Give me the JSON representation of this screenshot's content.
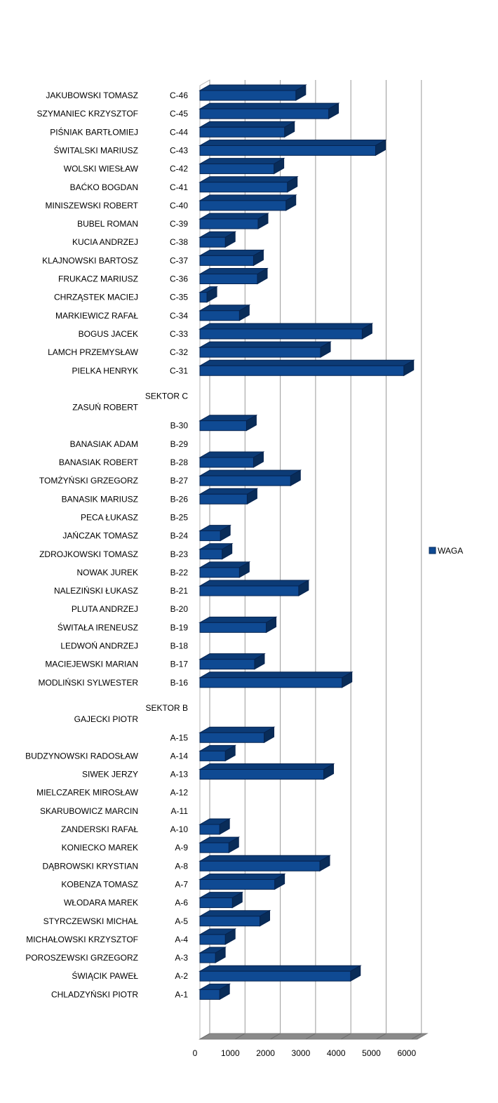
{
  "chart_data": {
    "type": "bar",
    "orientation": "horizontal",
    "style": "3d",
    "title": "",
    "xlabel": "",
    "ylabel": "",
    "xlim": [
      0,
      6000
    ],
    "x_ticks": [
      0,
      1000,
      2000,
      3000,
      4000,
      5000,
      6000
    ],
    "grid": true,
    "legend": "right",
    "series": [
      {
        "name": "WAGA",
        "color": "#0f4a93"
      }
    ],
    "rows": [
      {
        "name": "JAKUBOWSKI TOMASZ",
        "code": "C-46",
        "value": 2720
      },
      {
        "name": "SZYMANIEC KRZYSZTOF",
        "code": "C-45",
        "value": 3650
      },
      {
        "name": "PIŚNIAK BARTŁOMIEJ",
        "code": "C-44",
        "value": 2400
      },
      {
        "name": "ŚWITALSKI MARIUSZ",
        "code": "C-43",
        "value": 4980
      },
      {
        "name": "WOLSKI WIESŁAW",
        "code": "C-42",
        "value": 2100
      },
      {
        "name": "BAĆKO BOGDAN",
        "code": "C-41",
        "value": 2480
      },
      {
        "name": "MINISZEWSKI ROBERT",
        "code": "C-40",
        "value": 2440
      },
      {
        "name": "BUBEL ROMAN",
        "code": "C-39",
        "value": 1650
      },
      {
        "name": "KUCIA ANDRZEJ",
        "code": "C-38",
        "value": 720
      },
      {
        "name": "KLAJNOWSKI BARTOSZ",
        "code": "C-37",
        "value": 1520
      },
      {
        "name": "FRUKACZ MARIUSZ",
        "code": "C-36",
        "value": 1630
      },
      {
        "name": "CHRZĄSTEK MACIEJ",
        "code": "C-35",
        "value": 200
      },
      {
        "name": "MARKIEWICZ RAFAŁ",
        "code": "C-34",
        "value": 1120
      },
      {
        "name": "BOGUS JACEK",
        "code": "C-33",
        "value": 4600
      },
      {
        "name": "LAMCH PRZEMYSŁAW",
        "code": "C-32",
        "value": 3420
      },
      {
        "name": "PIELKA HENRYK",
        "code": "C-31",
        "value": 5780
      },
      {
        "name": "",
        "code": "",
        "value": null
      },
      {
        "name": "ZASUŃ ROBERT",
        "code": "SEKTOR C",
        "value": null
      },
      {
        "name": "",
        "code": "B-30",
        "value": 1320
      },
      {
        "name": "BANASIAK ADAM",
        "code": "B-29",
        "value": null
      },
      {
        "name": "BANASIAK ROBERT",
        "code": "B-28",
        "value": 1520
      },
      {
        "name": "TOMŻYŃSKI GRZEGORZ",
        "code": "B-27",
        "value": 2570
      },
      {
        "name": "BANASIK MARIUSZ",
        "code": "B-26",
        "value": 1340
      },
      {
        "name": "PECA ŁUKASZ",
        "code": "B-25",
        "value": null
      },
      {
        "name": "JAŃCZAK TOMASZ",
        "code": "B-24",
        "value": 580
      },
      {
        "name": "ZDROJKOWSKI TOMASZ",
        "code": "B-23",
        "value": 630
      },
      {
        "name": "NOWAK JUREK",
        "code": "B-22",
        "value": 1120
      },
      {
        "name": "NALEZIŃSKI ŁUKASZ",
        "code": "B-21",
        "value": 2800
      },
      {
        "name": "PLUTA ANDRZEJ",
        "code": "B-20",
        "value": null
      },
      {
        "name": "ŚWITAŁA IRENEUSZ",
        "code": "B-19",
        "value": 1880
      },
      {
        "name": "LEDWOŃ ANDRZEJ",
        "code": "B-18",
        "value": null
      },
      {
        "name": "MACIEJEWSKI MARIAN",
        "code": "B-17",
        "value": 1550
      },
      {
        "name": "MODLIŃSKI SYLWESTER",
        "code": "B-16",
        "value": 4030
      },
      {
        "name": "",
        "code": "",
        "value": null
      },
      {
        "name": "GAJECKI PIOTR",
        "code": "SEKTOR B",
        "value": null
      },
      {
        "name": "",
        "code": "A-15",
        "value": 1820
      },
      {
        "name": "BUDZYNOWSKI RADOSŁAW",
        "code": "A-14",
        "value": 720
      },
      {
        "name": "SIWEK JERZY",
        "code": "A-13",
        "value": 3510
      },
      {
        "name": "MIELCZAREK MIROSŁAW",
        "code": "A-12",
        "value": null
      },
      {
        "name": "SKARUBOWICZ MARCIN",
        "code": "A-11",
        "value": null
      },
      {
        "name": "ZANDERSKI RAFAŁ",
        "code": "A-10",
        "value": 560
      },
      {
        "name": "KONIECKO MAREK",
        "code": "A-9",
        "value": 820
      },
      {
        "name": "DĄBROWSKI KRYSTIAN",
        "code": "A-8",
        "value": 3400
      },
      {
        "name": "KOBENZA TOMASZ",
        "code": "A-7",
        "value": 2120
      },
      {
        "name": "WŁODARA MAREK",
        "code": "A-6",
        "value": 920
      },
      {
        "name": "STYRCZEWSKI MICHAŁ",
        "code": "A-5",
        "value": 1700
      },
      {
        "name": "MICHAŁOWSKI KRZYSZTOF",
        "code": "A-4",
        "value": 720
      },
      {
        "name": "POROSZEWSKI GRZEGORZ",
        "code": "A-3",
        "value": 440
      },
      {
        "name": "ŚWIĄCIK PAWEŁ",
        "code": "A-2",
        "value": 4270
      },
      {
        "name": "CHLADZYŃSKI PIOTR",
        "code": "A-1",
        "value": 560
      }
    ]
  }
}
